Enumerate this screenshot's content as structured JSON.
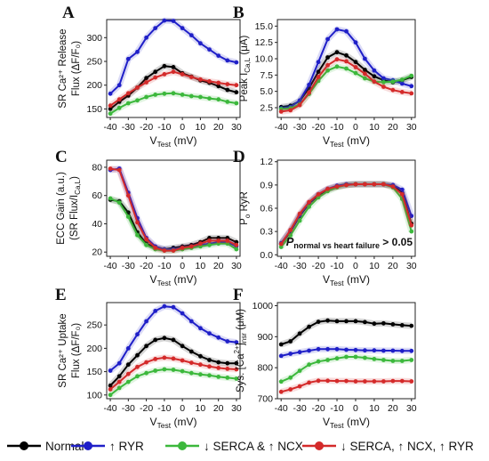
{
  "legend": [
    {
      "label": "Normal",
      "color": "#000000"
    },
    {
      "label": "↑ RYR",
      "color": "#1f1fc8"
    },
    {
      "label": "↓ SERCA & ↑ NCX",
      "color": "#3cb83c"
    },
    {
      "label": "↓ SERCA, ↑ NCX, ↑ RYR",
      "color": "#d42a2a"
    }
  ],
  "chart_data": [
    {
      "panel": "A",
      "type": "line",
      "ylabel_lines": [
        "SR Ca²⁺ Release",
        "Flux (ΔF/F₀)"
      ],
      "xlabel": "V",
      "xlabel_sub": "Test",
      "xlabel_unit": " (mV)",
      "xlim": [
        -42,
        32
      ],
      "xticks": [
        -40,
        -30,
        -20,
        -10,
        0,
        10,
        20,
        30
      ],
      "ylim": [
        132,
        338
      ],
      "yticks": [
        150,
        200,
        250,
        300
      ],
      "x": [
        -40,
        -35,
        -30,
        -25,
        -20,
        -15,
        -10,
        -5,
        0,
        5,
        10,
        15,
        20,
        25,
        30
      ],
      "series": [
        {
          "color": "#000000",
          "values": [
            150,
            165,
            178,
            195,
            215,
            228,
            240,
            238,
            225,
            218,
            210,
            205,
            198,
            190,
            185
          ]
        },
        {
          "color": "#1f1fc8",
          "values": [
            182,
            200,
            255,
            270,
            300,
            320,
            336,
            335,
            320,
            305,
            288,
            275,
            262,
            252,
            248
          ]
        },
        {
          "color": "#3cb83c",
          "values": [
            140,
            152,
            162,
            168,
            175,
            180,
            182,
            183,
            180,
            177,
            175,
            172,
            170,
            165,
            162
          ]
        },
        {
          "color": "#d42a2a",
          "values": [
            157,
            170,
            183,
            195,
            206,
            216,
            223,
            228,
            223,
            217,
            212,
            208,
            205,
            202,
            200
          ]
        }
      ]
    },
    {
      "panel": "B",
      "type": "line",
      "ylabel_lines": [
        "Peak I",
        "Ca,L",
        " (μA)"
      ],
      "xlabel": "V",
      "xlabel_sub": "Test",
      "xlabel_unit": " (mV)",
      "xlim": [
        -42,
        32
      ],
      "xticks": [
        -40,
        -30,
        -20,
        -10,
        0,
        10,
        20,
        30
      ],
      "ylim": [
        1,
        16
      ],
      "yticks": [
        2.5,
        5.0,
        7.5,
        10.0,
        12.5,
        15.0
      ],
      "x": [
        -40,
        -35,
        -30,
        -25,
        -20,
        -15,
        -10,
        -5,
        0,
        5,
        10,
        15,
        20,
        25,
        30
      ],
      "series": [
        {
          "color": "#000000",
          "values": [
            2.6,
            2.8,
            3.5,
            5.5,
            8.0,
            10.2,
            11.0,
            10.5,
            9.5,
            8.3,
            7.3,
            6.7,
            6.4,
            6.7,
            7.2
          ]
        },
        {
          "color": "#1f1fc8",
          "values": [
            2.4,
            2.6,
            3.6,
            6.0,
            9.5,
            13.0,
            14.5,
            14.2,
            12.5,
            10.0,
            8.2,
            7.0,
            6.7,
            6.2,
            5.8
          ]
        },
        {
          "color": "#3cb83c",
          "values": [
            2.3,
            2.4,
            3.0,
            4.6,
            6.6,
            8.2,
            8.8,
            8.5,
            7.8,
            7.0,
            6.5,
            6.4,
            6.5,
            6.8,
            7.4
          ]
        },
        {
          "color": "#d42a2a",
          "values": [
            1.9,
            2.1,
            2.9,
            4.8,
            7.2,
            9.0,
            9.9,
            9.6,
            8.7,
            7.7,
            6.5,
            5.7,
            5.2,
            4.9,
            4.7
          ]
        }
      ]
    },
    {
      "panel": "C",
      "type": "line",
      "ylabel_lines": [
        "ECC Gain (a.u.)",
        "(SR Flux/I",
        "Ca,L",
        ")"
      ],
      "xlabel": "V",
      "xlabel_sub": "Test",
      "xlabel_unit": " (mV)",
      "xlim": [
        -42,
        32
      ],
      "xticks": [
        -40,
        -30,
        -20,
        -10,
        0,
        10,
        20,
        30
      ],
      "ylim": [
        17,
        85
      ],
      "yticks": [
        20,
        40,
        60,
        80
      ],
      "x": [
        -40,
        -35,
        -30,
        -25,
        -20,
        -15,
        -10,
        -5,
        0,
        5,
        10,
        15,
        20,
        25,
        30
      ],
      "series": [
        {
          "color": "#000000",
          "values": [
            57,
            56,
            48,
            34,
            26,
            23,
            22,
            23,
            24,
            25,
            27,
            30,
            30,
            30,
            27
          ]
        },
        {
          "color": "#1f1fc8",
          "values": [
            78,
            79,
            62,
            44,
            30,
            24,
            22,
            22,
            23,
            24,
            25,
            26,
            27,
            27,
            24
          ]
        },
        {
          "color": "#3cb83c",
          "values": [
            58,
            55,
            45,
            32,
            25,
            22,
            21,
            21,
            22,
            23,
            24,
            25,
            26,
            26,
            22
          ]
        },
        {
          "color": "#d42a2a",
          "values": [
            79,
            78,
            60,
            41,
            29,
            23,
            21,
            21,
            23,
            24,
            26,
            28,
            28,
            28,
            25
          ]
        }
      ]
    },
    {
      "panel": "D",
      "type": "line",
      "ylabel": "P",
      "ylabel_sub": "o",
      "ylabel_rest": " RyR",
      "xlabel": "V",
      "xlabel_sub": "Test",
      "xlabel_unit": " (mV)",
      "xlim": [
        -42,
        32
      ],
      "xticks": [
        -40,
        -30,
        -20,
        -10,
        0,
        10,
        20,
        30
      ],
      "ylim": [
        -0.02,
        1.22
      ],
      "yticks": [
        0.0,
        0.3,
        0.6,
        0.9,
        1.2
      ],
      "annotation": "P",
      "annotation_sub": "normal vs heart failure",
      "annotation_rest": " > 0.05",
      "x": [
        -40,
        -35,
        -30,
        -25,
        -20,
        -15,
        -10,
        -5,
        0,
        5,
        10,
        15,
        20,
        25,
        30
      ],
      "series": [
        {
          "color": "#000000",
          "values": [
            0.14,
            0.3,
            0.5,
            0.66,
            0.77,
            0.84,
            0.88,
            0.9,
            0.91,
            0.91,
            0.91,
            0.91,
            0.89,
            0.8,
            0.4
          ]
        },
        {
          "color": "#1f1fc8",
          "values": [
            0.15,
            0.31,
            0.51,
            0.67,
            0.78,
            0.85,
            0.89,
            0.91,
            0.91,
            0.91,
            0.91,
            0.91,
            0.9,
            0.84,
            0.5
          ]
        },
        {
          "color": "#3cb83c",
          "values": [
            0.1,
            0.25,
            0.44,
            0.62,
            0.74,
            0.82,
            0.87,
            0.9,
            0.91,
            0.91,
            0.91,
            0.91,
            0.87,
            0.72,
            0.3
          ]
        },
        {
          "color": "#d42a2a",
          "values": [
            0.14,
            0.32,
            0.53,
            0.68,
            0.78,
            0.85,
            0.88,
            0.9,
            0.91,
            0.91,
            0.91,
            0.91,
            0.88,
            0.78,
            0.38
          ]
        }
      ]
    },
    {
      "panel": "E",
      "type": "line",
      "ylabel_lines": [
        "SR Ca²⁺ Uptake",
        "Flux (ΔF/F₀)"
      ],
      "xlabel": "V",
      "xlabel_sub": "Test",
      "xlabel_unit": " (mV)",
      "xlim": [
        -42,
        32
      ],
      "xticks": [
        -40,
        -30,
        -20,
        -10,
        0,
        10,
        20,
        30
      ],
      "ylim": [
        92,
        298
      ],
      "yticks": [
        100,
        150,
        200,
        250
      ],
      "x": [
        -40,
        -35,
        -30,
        -25,
        -20,
        -15,
        -10,
        -5,
        0,
        5,
        10,
        15,
        20,
        25,
        30
      ],
      "series": [
        {
          "color": "#000000",
          "values": [
            120,
            140,
            165,
            185,
            205,
            218,
            222,
            218,
            205,
            193,
            183,
            175,
            170,
            168,
            168
          ]
        },
        {
          "color": "#1f1fc8",
          "values": [
            152,
            168,
            200,
            230,
            258,
            280,
            290,
            288,
            275,
            258,
            243,
            232,
            223,
            215,
            213
          ]
        },
        {
          "color": "#3cb83c",
          "values": [
            100,
            115,
            128,
            140,
            147,
            152,
            155,
            154,
            151,
            147,
            144,
            142,
            139,
            137,
            135
          ]
        },
        {
          "color": "#d42a2a",
          "values": [
            112,
            128,
            145,
            160,
            170,
            177,
            180,
            178,
            174,
            169,
            165,
            161,
            158,
            156,
            155
          ]
        }
      ]
    },
    {
      "panel": "F",
      "type": "line",
      "ylabel": "Sys. [Ca",
      "ylabel_sup": "2+",
      "ylabel_mid": "]",
      "ylabel_sub": "nsr",
      "ylabel_rest": " (μM)",
      "xlabel": "V",
      "xlabel_sub": "Test",
      "xlabel_unit": " (mV)",
      "xlim": [
        -42,
        32
      ],
      "xticks": [
        -40,
        -30,
        -20,
        -10,
        0,
        10,
        20,
        30
      ],
      "ylim": [
        700,
        1010
      ],
      "yticks": [
        700,
        800,
        900,
        1000
      ],
      "x": [
        -40,
        -35,
        -30,
        -25,
        -20,
        -15,
        -10,
        -5,
        0,
        5,
        10,
        15,
        20,
        25,
        30
      ],
      "series": [
        {
          "color": "#000000",
          "values": [
            875,
            885,
            910,
            932,
            948,
            952,
            950,
            950,
            950,
            947,
            942,
            943,
            940,
            937,
            935
          ]
        },
        {
          "color": "#1f1fc8",
          "values": [
            838,
            845,
            850,
            855,
            860,
            860,
            860,
            858,
            857,
            856,
            856,
            855,
            855,
            854,
            854
          ]
        },
        {
          "color": "#3cb83c",
          "values": [
            755,
            768,
            790,
            810,
            820,
            825,
            830,
            835,
            835,
            832,
            828,
            825,
            822,
            822,
            825
          ]
        },
        {
          "color": "#d42a2a",
          "values": [
            722,
            730,
            740,
            752,
            758,
            758,
            757,
            757,
            756,
            756,
            756,
            756,
            757,
            757,
            756
          ]
        }
      ]
    }
  ]
}
